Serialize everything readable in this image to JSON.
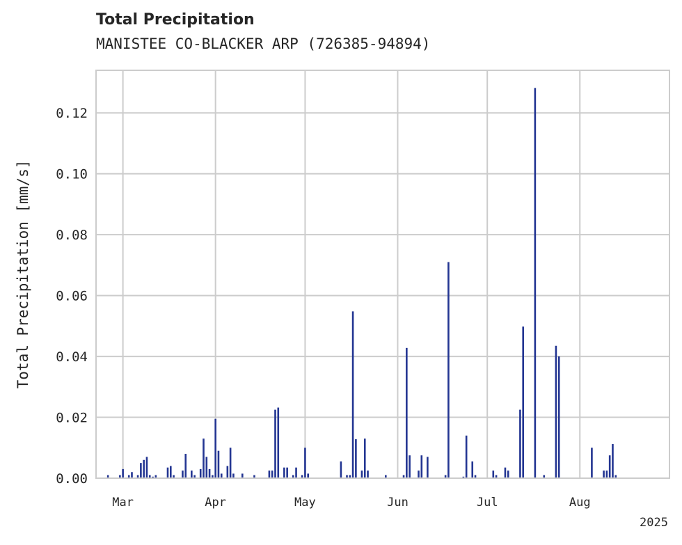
{
  "chart_data": {
    "type": "bar",
    "title": "Total Precipitation",
    "subtitle": "MANISTEE CO-BLACKER ARP (726385-94894)",
    "xlabel": "",
    "ylabel": "Total Precipitation [mm/s]",
    "year_label": "2025",
    "x_range": [
      "2025-02-20",
      "2025-08-31"
    ],
    "ylim": [
      0,
      0.134
    ],
    "yticks": [
      0.0,
      0.02,
      0.04,
      0.06,
      0.08,
      0.1,
      0.12
    ],
    "ytick_labels": [
      "0.00",
      "0.02",
      "0.04",
      "0.06",
      "0.08",
      "0.10",
      "0.12"
    ],
    "xticks": [
      {
        "date": "2025-03-01",
        "label": "Mar"
      },
      {
        "date": "2025-04-01",
        "label": "Apr"
      },
      {
        "date": "2025-05-01",
        "label": "May"
      },
      {
        "date": "2025-06-01",
        "label": "Jun"
      },
      {
        "date": "2025-07-01",
        "label": "Jul"
      },
      {
        "date": "2025-08-01",
        "label": "Aug"
      }
    ],
    "grid": true,
    "bar_color": "#233592",
    "series": [
      {
        "x": [
          "2025-02-24",
          "2025-02-28",
          "2025-03-01",
          "2025-03-03",
          "2025-03-04",
          "2025-03-06",
          "2025-03-07",
          "2025-03-08",
          "2025-03-09",
          "2025-03-10",
          "2025-03-11",
          "2025-03-12",
          "2025-03-16",
          "2025-03-17",
          "2025-03-18",
          "2025-03-21",
          "2025-03-22",
          "2025-03-24",
          "2025-03-25",
          "2025-03-27",
          "2025-03-28",
          "2025-03-29",
          "2025-03-30",
          "2025-03-31",
          "2025-04-01",
          "2025-04-02",
          "2025-04-03",
          "2025-04-05",
          "2025-04-06",
          "2025-04-07",
          "2025-04-10",
          "2025-04-14",
          "2025-04-19",
          "2025-04-20",
          "2025-04-21",
          "2025-04-22",
          "2025-04-24",
          "2025-04-25",
          "2025-04-27",
          "2025-04-28",
          "2025-04-30",
          "2025-05-01",
          "2025-05-02",
          "2025-05-13",
          "2025-05-15",
          "2025-05-16",
          "2025-05-17",
          "2025-05-18",
          "2025-05-20",
          "2025-05-21",
          "2025-05-22",
          "2025-05-28",
          "2025-06-03",
          "2025-06-04",
          "2025-06-05",
          "2025-06-08",
          "2025-06-09",
          "2025-06-11",
          "2025-06-17",
          "2025-06-18",
          "2025-06-23",
          "2025-06-24",
          "2025-06-26",
          "2025-06-27",
          "2025-07-03",
          "2025-07-04",
          "2025-07-07",
          "2025-07-08",
          "2025-07-12",
          "2025-07-13",
          "2025-07-17",
          "2025-07-20",
          "2025-07-24",
          "2025-07-25",
          "2025-08-05",
          "2025-08-09",
          "2025-08-10",
          "2025-08-11",
          "2025-08-12",
          "2025-08-13"
        ],
        "values": [
          0.001,
          0.001,
          0.003,
          0.001,
          0.002,
          0.001,
          0.005,
          0.006,
          0.007,
          0.001,
          0.0005,
          0.001,
          0.0035,
          0.004,
          0.001,
          0.0025,
          0.008,
          0.0025,
          0.001,
          0.003,
          0.013,
          0.007,
          0.003,
          0.001,
          0.0195,
          0.009,
          0.0015,
          0.004,
          0.01,
          0.0015,
          0.0015,
          0.001,
          0.0025,
          0.0025,
          0.0225,
          0.0232,
          0.0035,
          0.0035,
          0.001,
          0.0035,
          0.001,
          0.01,
          0.0015,
          0.0055,
          0.001,
          0.001,
          0.0548,
          0.0128,
          0.0025,
          0.013,
          0.0025,
          0.001,
          0.001,
          0.0428,
          0.0075,
          0.0025,
          0.0075,
          0.007,
          0.001,
          0.071,
          0.0005,
          0.014,
          0.0055,
          0.001,
          0.0025,
          0.001,
          0.0035,
          0.0025,
          0.0225,
          0.0498,
          0.1282,
          0.001,
          0.0435,
          0.04,
          0.01,
          0.0025,
          0.0025,
          0.0075,
          0.0112,
          0.001
        ]
      }
    ]
  }
}
